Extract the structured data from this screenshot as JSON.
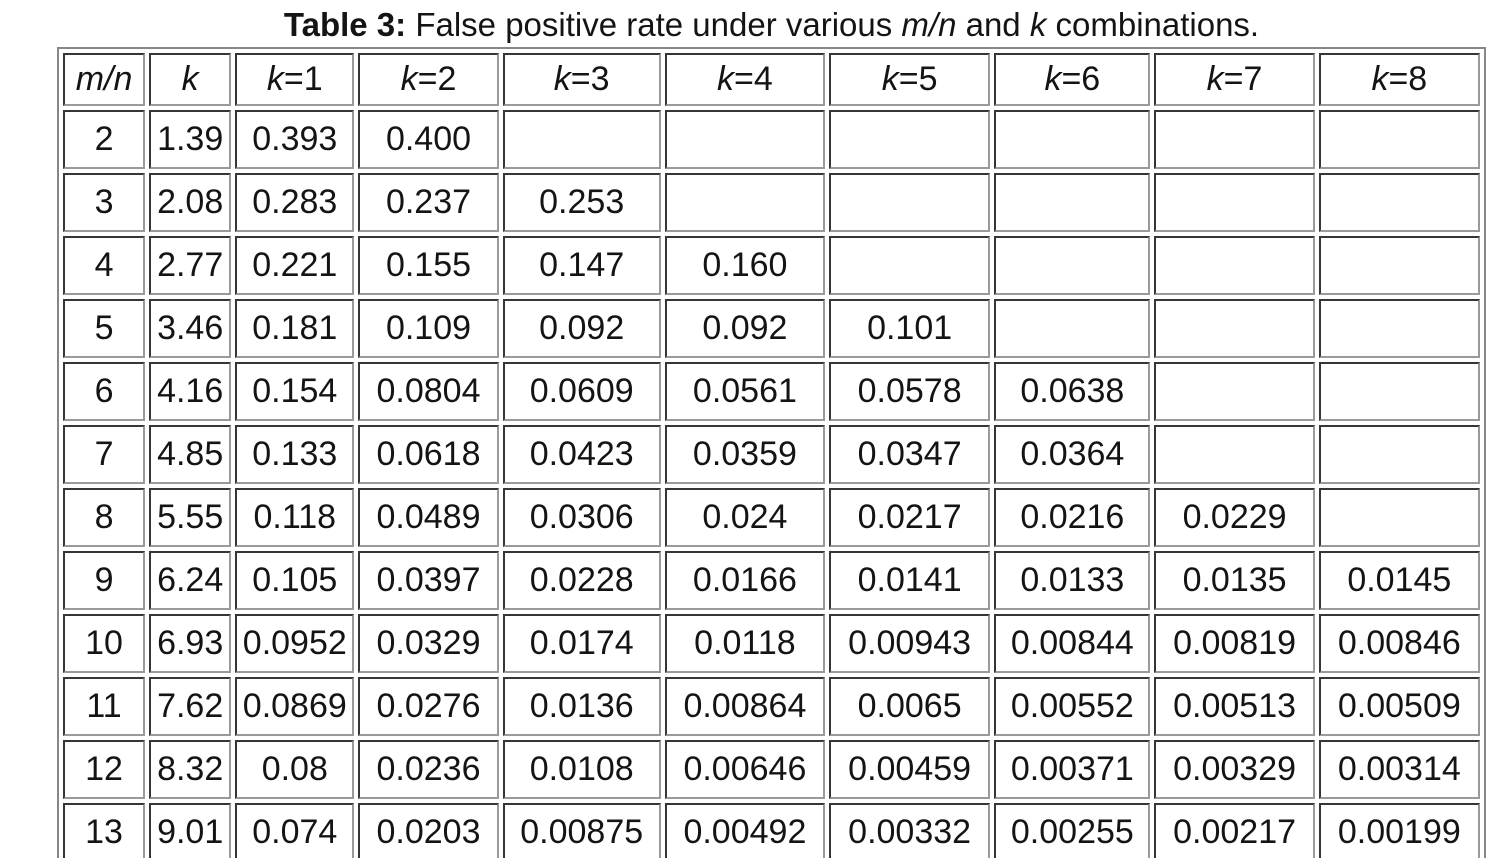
{
  "caption": {
    "bold": "Table 3:",
    "part1": " False positive rate under various ",
    "italic1": "m/n",
    "part2": " and ",
    "italic2": "k",
    "part3": " combinations."
  },
  "table": {
    "headers": [
      {
        "italic": "m/n",
        "rest": ""
      },
      {
        "italic": "k",
        "rest": ""
      },
      {
        "italic": "k",
        "rest": "=1"
      },
      {
        "italic": "k",
        "rest": "=2"
      },
      {
        "italic": "k",
        "rest": "=3"
      },
      {
        "italic": "k",
        "rest": "=4"
      },
      {
        "italic": "k",
        "rest": "=5"
      },
      {
        "italic": "k",
        "rest": "=6"
      },
      {
        "italic": "k",
        "rest": "=7"
      },
      {
        "italic": "k",
        "rest": "=8"
      }
    ],
    "rows": [
      {
        "m_n": "2",
        "k": "1.39",
        "values": [
          "0.393",
          "0.400",
          "",
          "",
          "",
          "",
          "",
          ""
        ]
      },
      {
        "m_n": "3",
        "k": "2.08",
        "values": [
          "0.283",
          "0.237",
          "0.253",
          "",
          "",
          "",
          "",
          ""
        ]
      },
      {
        "m_n": "4",
        "k": "2.77",
        "values": [
          "0.221",
          "0.155",
          "0.147",
          "0.160",
          "",
          "",
          "",
          ""
        ]
      },
      {
        "m_n": "5",
        "k": "3.46",
        "values": [
          "0.181",
          "0.109",
          "0.092",
          "0.092",
          "0.101",
          "",
          "",
          ""
        ]
      },
      {
        "m_n": "6",
        "k": "4.16",
        "values": [
          "0.154",
          "0.0804",
          "0.0609",
          "0.0561",
          "0.0578",
          "0.0638",
          "",
          ""
        ]
      },
      {
        "m_n": "7",
        "k": "4.85",
        "values": [
          "0.133",
          "0.0618",
          "0.0423",
          "0.0359",
          "0.0347",
          "0.0364",
          "",
          ""
        ]
      },
      {
        "m_n": "8",
        "k": "5.55",
        "values": [
          "0.118",
          "0.0489",
          "0.0306",
          "0.024",
          "0.0217",
          "0.0216",
          "0.0229",
          ""
        ]
      },
      {
        "m_n": "9",
        "k": "6.24",
        "values": [
          "0.105",
          "0.0397",
          "0.0228",
          "0.0166",
          "0.0141",
          "0.0133",
          "0.0135",
          "0.0145"
        ]
      },
      {
        "m_n": "10",
        "k": "6.93",
        "values": [
          "0.0952",
          "0.0329",
          "0.0174",
          "0.0118",
          "0.00943",
          "0.00844",
          "0.00819",
          "0.00846"
        ]
      },
      {
        "m_n": "11",
        "k": "7.62",
        "values": [
          "0.0869",
          "0.0276",
          "0.0136",
          "0.00864",
          "0.0065",
          "0.00552",
          "0.00513",
          "0.00509"
        ]
      },
      {
        "m_n": "12",
        "k": "8.32",
        "values": [
          "0.08",
          "0.0236",
          "0.0108",
          "0.00646",
          "0.00459",
          "0.00371",
          "0.00329",
          "0.00314"
        ]
      },
      {
        "m_n": "13",
        "k": "9.01",
        "values": [
          "0.074",
          "0.0203",
          "0.00875",
          "0.00492",
          "0.00332",
          "0.00255",
          "0.00217",
          "0.00199"
        ]
      }
    ]
  },
  "chart_data": {
    "type": "table",
    "title": "Table 3: False positive rate under various m/n and k combinations.",
    "columns": [
      "m/n",
      "k",
      "k=1",
      "k=2",
      "k=3",
      "k=4",
      "k=5",
      "k=6",
      "k=7",
      "k=8"
    ],
    "rows": [
      [
        2,
        1.39,
        0.393,
        0.4,
        null,
        null,
        null,
        null,
        null,
        null
      ],
      [
        3,
        2.08,
        0.283,
        0.237,
        0.253,
        null,
        null,
        null,
        null,
        null
      ],
      [
        4,
        2.77,
        0.221,
        0.155,
        0.147,
        0.16,
        null,
        null,
        null,
        null
      ],
      [
        5,
        3.46,
        0.181,
        0.109,
        0.092,
        0.092,
        0.101,
        null,
        null,
        null
      ],
      [
        6,
        4.16,
        0.154,
        0.0804,
        0.0609,
        0.0561,
        0.0578,
        0.0638,
        null,
        null
      ],
      [
        7,
        4.85,
        0.133,
        0.0618,
        0.0423,
        0.0359,
        0.0347,
        0.0364,
        null,
        null
      ],
      [
        8,
        5.55,
        0.118,
        0.0489,
        0.0306,
        0.024,
        0.0217,
        0.0216,
        0.0229,
        null
      ],
      [
        9,
        6.24,
        0.105,
        0.0397,
        0.0228,
        0.0166,
        0.0141,
        0.0133,
        0.0135,
        0.0145
      ],
      [
        10,
        6.93,
        0.0952,
        0.0329,
        0.0174,
        0.0118,
        0.00943,
        0.00844,
        0.00819,
        0.00846
      ],
      [
        11,
        7.62,
        0.0869,
        0.0276,
        0.0136,
        0.00864,
        0.0065,
        0.00552,
        0.00513,
        0.00509
      ],
      [
        12,
        8.32,
        0.08,
        0.0236,
        0.0108,
        0.00646,
        0.00459,
        0.00371,
        0.00329,
        0.00314
      ],
      [
        13,
        9.01,
        0.074,
        0.0203,
        0.00875,
        0.00492,
        0.00332,
        0.00255,
        0.00217,
        0.00199
      ]
    ]
  }
}
